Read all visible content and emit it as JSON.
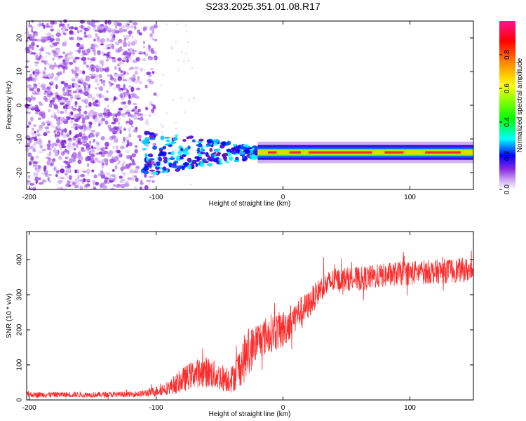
{
  "title": "S233.2025.351.01.08.R17",
  "chart_data": [
    {
      "type": "heatmap",
      "title": "S233.2025.351.01.08.R17",
      "xlabel": "Height of straight line (km)",
      "ylabel": "Frequency (Hz)",
      "xlim": [
        -202,
        150
      ],
      "ylim": [
        -25,
        25
      ],
      "x_ticks": [
        -200,
        -100,
        0,
        100
      ],
      "y_ticks": [
        20,
        10,
        0,
        -10,
        -20
      ],
      "colorbar": {
        "label": "Normalized spectral amplitude",
        "range": [
          0,
          1
        ],
        "ticks": [
          0.0,
          0.2,
          0.4,
          0.6,
          0.8
        ],
        "tick_labels": [
          "0.0",
          "0.2",
          "0.4",
          "0.6",
          "0.8"
        ],
        "colormap": [
          "#ffffff",
          "#6a0dad",
          "#0000ff",
          "#00ffff",
          "#00ff00",
          "#ffff00",
          "#ff8000",
          "#ff0000",
          "#ff1493"
        ]
      },
      "features": {
        "noise_region_x": [
          -202,
          -110
        ],
        "noise_freq_range": [
          -25,
          25
        ],
        "carrier_start_x": -110,
        "carrier_freq_hz": -14,
        "carrier_amplitude_near": 0.3,
        "carrier_amplitude_far": 0.85
      }
    },
    {
      "type": "line",
      "xlabel": "Height of straight line (km)",
      "ylabel": "SNR (10 * v/v)",
      "xlim": [
        -202,
        150
      ],
      "ylim": [
        0,
        480
      ],
      "x_ticks": [
        -200,
        -100,
        0,
        100
      ],
      "y_ticks": [
        0,
        100,
        200,
        300,
        400
      ],
      "series": [
        {
          "name": "SNR",
          "color": "#ff2a2a",
          "x": [
            -202,
            -180,
            -160,
            -140,
            -120,
            -110,
            -100,
            -90,
            -80,
            -70,
            -60,
            -50,
            -40,
            -30,
            -20,
            -10,
            0,
            10,
            20,
            30,
            40,
            50,
            60,
            70,
            80,
            90,
            100,
            110,
            120,
            130,
            140,
            150
          ],
          "y": [
            15,
            15,
            15,
            15,
            16,
            18,
            25,
            35,
            55,
            75,
            80,
            65,
            60,
            120,
            170,
            190,
            200,
            240,
            270,
            320,
            340,
            345,
            345,
            350,
            355,
            360,
            362,
            365,
            365,
            368,
            370,
            370
          ],
          "noise": [
            8,
            8,
            8,
            8,
            8,
            10,
            15,
            20,
            35,
            40,
            45,
            40,
            40,
            70,
            55,
            55,
            55,
            45,
            40,
            35,
            35,
            35,
            35,
            35,
            35,
            35,
            35,
            35,
            35,
            35,
            35,
            35
          ]
        }
      ]
    }
  ]
}
